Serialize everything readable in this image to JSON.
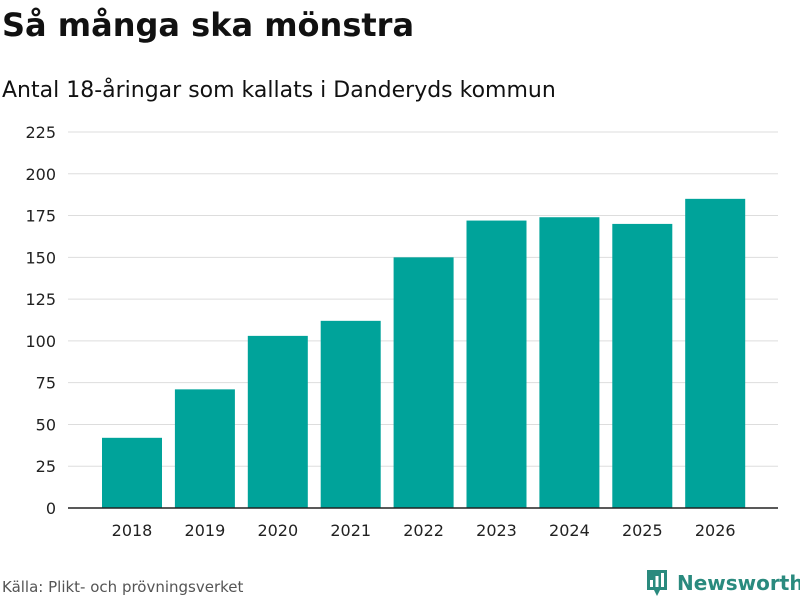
{
  "header": {
    "title": "Så många ska mönstra",
    "subtitle": "Antal 18-åringar som kallats i Danderyds kommun"
  },
  "footer": {
    "source": "Källa: Plikt- och prövningsverket",
    "brand": "Newsworthy"
  },
  "colors": {
    "bar": "#00a39a",
    "grid": "#dddddd",
    "axis": "#222222",
    "brand": "#2a8a7e"
  },
  "chart_data": {
    "type": "bar",
    "title": "Så många ska mönstra",
    "subtitle": "Antal 18-åringar som kallats i Danderyds kommun",
    "xlabel": "",
    "ylabel": "",
    "categories": [
      "2018",
      "2019",
      "2020",
      "2021",
      "2022",
      "2023",
      "2024",
      "2025",
      "2026"
    ],
    "values": [
      42,
      71,
      103,
      112,
      150,
      172,
      174,
      170,
      185
    ],
    "ylim": [
      0,
      225
    ],
    "yticks": [
      0,
      25,
      50,
      75,
      100,
      125,
      150,
      175,
      200,
      225
    ],
    "grid": true,
    "legend": "none"
  }
}
